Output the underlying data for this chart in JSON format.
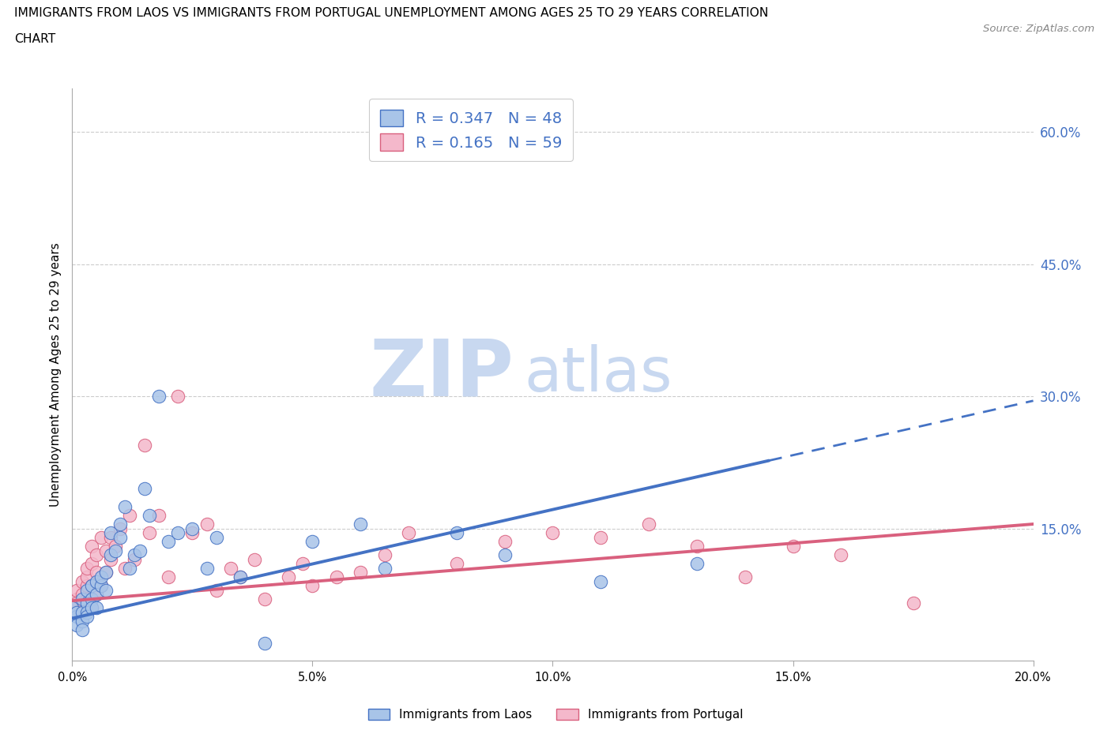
{
  "title_line1": "IMMIGRANTS FROM LAOS VS IMMIGRANTS FROM PORTUGAL UNEMPLOYMENT AMONG AGES 25 TO 29 YEARS CORRELATION",
  "title_line2": "CHART",
  "source_text": "Source: ZipAtlas.com",
  "ylabel": "Unemployment Among Ages 25 to 29 years",
  "xlim": [
    0.0,
    0.2
  ],
  "ylim": [
    0.0,
    0.65
  ],
  "xticks": [
    0.0,
    0.05,
    0.1,
    0.15,
    0.2
  ],
  "xticklabels": [
    "0.0%",
    "5.0%",
    "10.0%",
    "15.0%",
    "20.0%"
  ],
  "right_yticks": [
    0.15,
    0.3,
    0.45,
    0.6
  ],
  "right_yticklabels": [
    "15.0%",
    "30.0%",
    "45.0%",
    "60.0%"
  ],
  "right_tick_color": "#4472c4",
  "grid_yticks": [
    0.15,
    0.3,
    0.45,
    0.6
  ],
  "laos_color": "#a8c4e8",
  "laos_edge_color": "#4472c4",
  "portugal_color": "#f4b8cb",
  "portugal_edge_color": "#d9607e",
  "trend_laos_color": "#4472c4",
  "trend_portugal_color": "#d9607e",
  "R_laos": "0.347",
  "N_laos": "48",
  "R_portugal": "0.165",
  "N_portugal": "59",
  "legend_label_laos": "Immigrants from Laos",
  "legend_label_portugal": "Immigrants from Portugal",
  "watermark_zip_color": "#c8d8f0",
  "watermark_atlas_color": "#c8d8f0",
  "laos_scatter_x": [
    0.0,
    0.001,
    0.001,
    0.001,
    0.002,
    0.002,
    0.002,
    0.002,
    0.003,
    0.003,
    0.003,
    0.003,
    0.004,
    0.004,
    0.004,
    0.005,
    0.005,
    0.005,
    0.006,
    0.006,
    0.007,
    0.007,
    0.008,
    0.008,
    0.009,
    0.01,
    0.01,
    0.011,
    0.012,
    0.013,
    0.014,
    0.015,
    0.016,
    0.018,
    0.02,
    0.022,
    0.025,
    0.028,
    0.03,
    0.035,
    0.04,
    0.05,
    0.06,
    0.065,
    0.08,
    0.09,
    0.11,
    0.13
  ],
  "laos_scatter_y": [
    0.06,
    0.05,
    0.04,
    0.055,
    0.055,
    0.045,
    0.07,
    0.035,
    0.065,
    0.055,
    0.08,
    0.05,
    0.07,
    0.085,
    0.06,
    0.075,
    0.06,
    0.09,
    0.085,
    0.095,
    0.1,
    0.08,
    0.145,
    0.12,
    0.125,
    0.14,
    0.155,
    0.175,
    0.105,
    0.12,
    0.125,
    0.195,
    0.165,
    0.3,
    0.135,
    0.145,
    0.15,
    0.105,
    0.14,
    0.095,
    0.02,
    0.135,
    0.155,
    0.105,
    0.145,
    0.12,
    0.09,
    0.11
  ],
  "portugal_scatter_x": [
    0.0,
    0.001,
    0.001,
    0.001,
    0.001,
    0.002,
    0.002,
    0.002,
    0.003,
    0.003,
    0.003,
    0.003,
    0.004,
    0.004,
    0.004,
    0.004,
    0.005,
    0.005,
    0.005,
    0.006,
    0.006,
    0.007,
    0.007,
    0.008,
    0.008,
    0.009,
    0.01,
    0.011,
    0.012,
    0.013,
    0.015,
    0.016,
    0.018,
    0.02,
    0.022,
    0.025,
    0.028,
    0.03,
    0.033,
    0.035,
    0.038,
    0.04,
    0.045,
    0.048,
    0.05,
    0.055,
    0.06,
    0.065,
    0.07,
    0.08,
    0.09,
    0.1,
    0.11,
    0.12,
    0.13,
    0.14,
    0.15,
    0.16,
    0.175
  ],
  "portugal_scatter_y": [
    0.06,
    0.07,
    0.065,
    0.08,
    0.055,
    0.075,
    0.09,
    0.06,
    0.085,
    0.07,
    0.095,
    0.105,
    0.11,
    0.085,
    0.13,
    0.06,
    0.1,
    0.12,
    0.075,
    0.085,
    0.14,
    0.1,
    0.125,
    0.115,
    0.14,
    0.13,
    0.15,
    0.105,
    0.165,
    0.115,
    0.245,
    0.145,
    0.165,
    0.095,
    0.3,
    0.145,
    0.155,
    0.08,
    0.105,
    0.095,
    0.115,
    0.07,
    0.095,
    0.11,
    0.085,
    0.095,
    0.1,
    0.12,
    0.145,
    0.11,
    0.135,
    0.145,
    0.14,
    0.155,
    0.13,
    0.095,
    0.13,
    0.12,
    0.065
  ],
  "trend_laos_x0": 0.0,
  "trend_laos_y0": 0.048,
  "trend_laos_x1": 0.2,
  "trend_laos_y1": 0.295,
  "trend_laos_solid_end": 0.145,
  "trend_portugal_x0": 0.0,
  "trend_portugal_y0": 0.068,
  "trend_portugal_x1": 0.2,
  "trend_portugal_y1": 0.155
}
